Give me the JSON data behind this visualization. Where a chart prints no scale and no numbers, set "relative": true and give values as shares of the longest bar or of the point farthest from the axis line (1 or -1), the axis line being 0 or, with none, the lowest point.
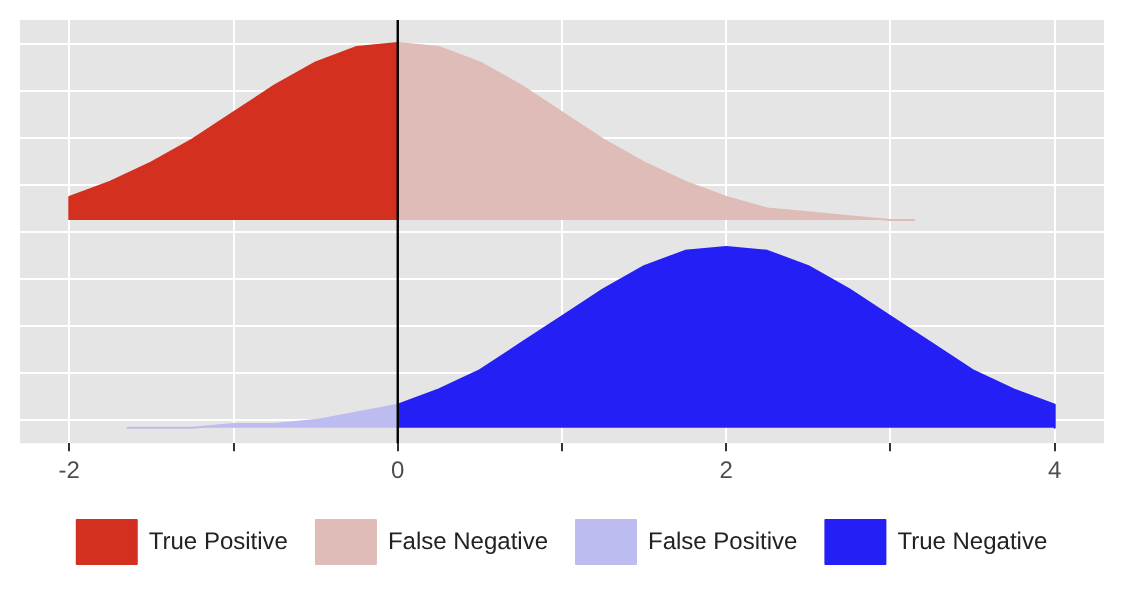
{
  "chart_data": {
    "type": "area",
    "relative": true,
    "xlim": [
      -2.3,
      4.3
    ],
    "xticks": [
      -2,
      {
        "value": -1,
        "label": null
      },
      0,
      {
        "value": 1,
        "label": null
      },
      2,
      {
        "value": 3,
        "label": null
      },
      4
    ],
    "grid": true,
    "legend": "bottom",
    "tick_labels": "x",
    "ref_lines": [
      {
        "axis": "x",
        "value": 0,
        "color": "#000000"
      }
    ],
    "series": [
      {
        "name": "True Positive",
        "color": "#d33020",
        "x": [
          -2,
          -2,
          -1.75,
          -1.5,
          -1.25,
          -1,
          -0.75,
          -0.5,
          -0.25,
          0
        ],
        "values": [
          0.54,
          0.6,
          0.64,
          0.69,
          0.75,
          0.82,
          0.89,
          0.95,
          0.99,
          1
        ]
      },
      {
        "name": "False Negative",
        "color": "#dfbcb8",
        "x": [
          0,
          0.25,
          0.5,
          0.75,
          1,
          1.25,
          1.5,
          1.75,
          2,
          2.25,
          2.5,
          2.75,
          3,
          3.15
        ],
        "values": [
          1,
          0.99,
          0.95,
          0.89,
          0.82,
          0.75,
          0.69,
          0.64,
          0.6,
          0.57,
          0.56,
          0.55,
          0.54,
          0.54
        ]
      },
      {
        "name": "False Positive",
        "color": "#bcbcf0",
        "x": [
          -1.65,
          -1.25,
          -1,
          -0.75,
          -0.5,
          -0.25,
          0
        ],
        "values": [
          0,
          0,
          0.01,
          0.01,
          0.02,
          0.04,
          0.06
        ]
      },
      {
        "name": "True Negative",
        "color": "#2420f5",
        "x": [
          0,
          0.25,
          0.5,
          0.75,
          1,
          1.25,
          1.5,
          1.75,
          2,
          2.25,
          2.5,
          2.75,
          3,
          3.25,
          3.5,
          3.75,
          4,
          4
        ],
        "values": [
          0.06,
          0.1,
          0.15,
          0.22,
          0.29,
          0.36,
          0.42,
          0.46,
          0.47,
          0.46,
          0.42,
          0.36,
          0.29,
          0.22,
          0.15,
          0.1,
          0.06,
          0
        ]
      }
    ]
  }
}
